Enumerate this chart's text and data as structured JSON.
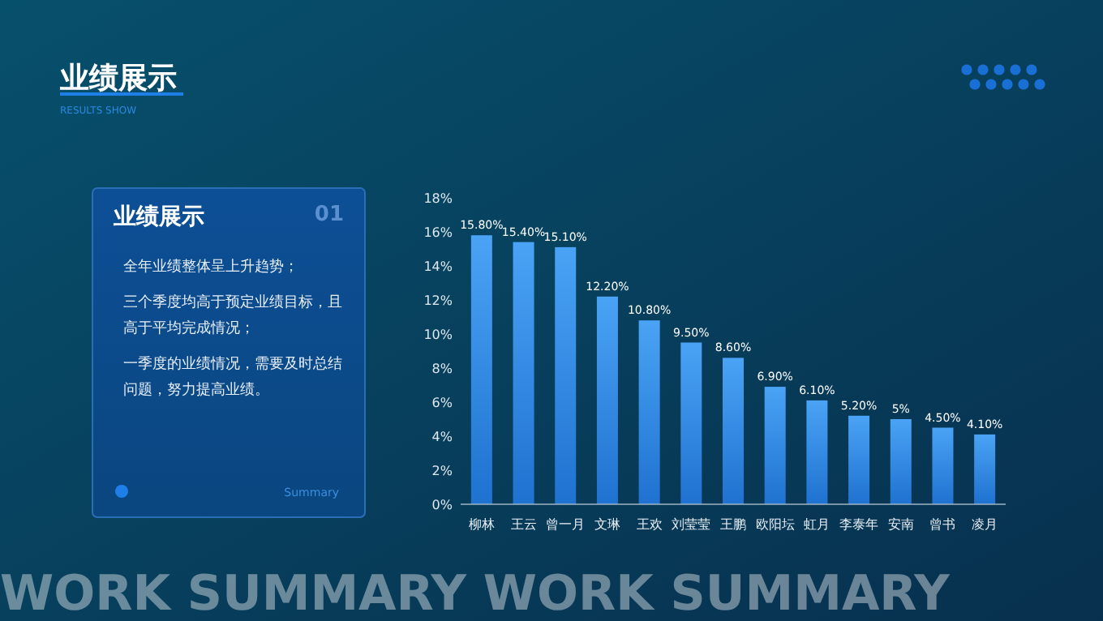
{
  "chart_data": [
    {
      "type": "other",
      "title": "业绩展示",
      "subtitle": "RESULTS SHOW",
      "annotations": [
        "业绩展示",
        "01",
        "全年业绩整体呈上升趋势；",
        "三个季度均高于预定业绩目标，且高于平均完成情况；",
        "一季度的业绩情况，需要及时总结问题，努力提高业绩。",
        "Summary"
      ]
    },
    {
      "type": "bar",
      "annotations": [
        "WORK SUMMARY WORK SUMMARY"
      ],
      "categories": [
        "柳林",
        "王云",
        "曾一月",
        "文琳",
        "王欢",
        "刘莹莹",
        "王鹏",
        "欧阳坛",
        "虹月",
        "李泰年",
        "安南",
        "曾书",
        "凌月"
      ],
      "values": [
        15.8,
        15.4,
        15.1,
        12.2,
        10.8,
        9.5,
        8.6,
        6.9,
        6.1,
        5.2,
        5,
        4.5,
        4.1
      ],
      "value_labels": [
        "15.80%",
        "15.40%",
        "15.10%",
        "12.20%",
        "10.80%",
        "9.50%",
        "8.60%",
        "6.90%",
        "6.10%",
        "5.20%",
        "5%",
        "4.50%",
        "4.10%"
      ],
      "color": "#4aa3f5",
      "ylim": [
        0,
        18
      ],
      "yticks": [
        {
          "value": 0,
          "label": "0%"
        },
        {
          "value": 2,
          "label": "2%"
        },
        {
          "value": 4,
          "label": "4%"
        },
        {
          "value": 6,
          "label": "6%"
        },
        {
          "value": 8,
          "label": "8%"
        },
        {
          "value": 10,
          "label": "10%"
        },
        {
          "value": 12,
          "label": "12%"
        },
        {
          "value": 14,
          "label": "14%"
        },
        {
          "value": 16,
          "label": "16%"
        },
        {
          "value": 18,
          "label": "18%"
        }
      ],
      "grid": false
    }
  ]
}
